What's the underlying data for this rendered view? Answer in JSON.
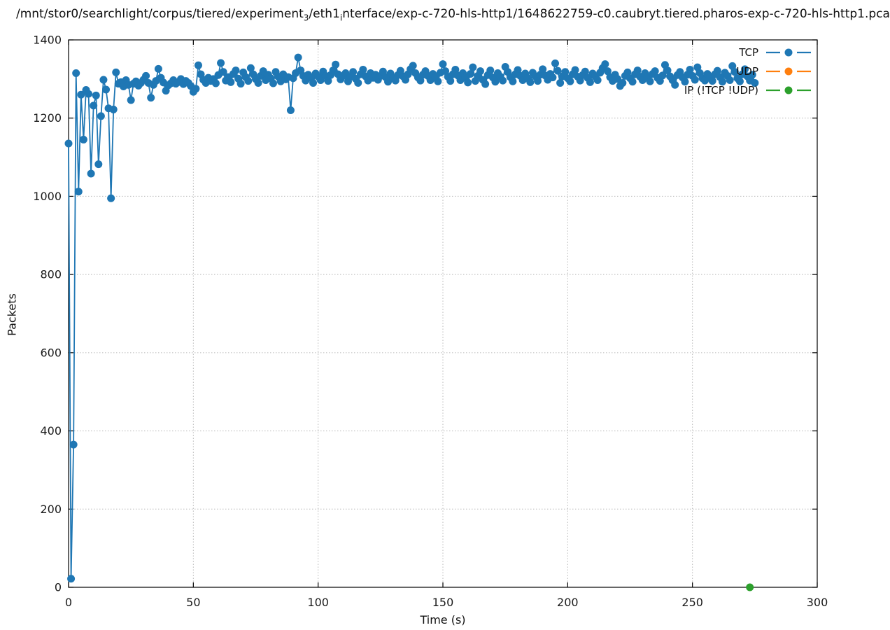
{
  "title": {
    "part1": "/mnt/stor0/searchlight/corpus/tiered/experiment",
    "sub1": "3",
    "part2": "/eth1",
    "sub2": "i",
    "part3": "nterface/exp-c-720-hls-http1/1648622759-c0.caubryt.tiered.pharos-exp-c-720-hls-http1.pca"
  },
  "axes": {
    "xlabel": "Time (s)",
    "ylabel": "Packets",
    "xlim": [
      0,
      300
    ],
    "ylim": [
      0,
      1400
    ],
    "xticks": [
      0,
      50,
      100,
      150,
      200,
      250,
      300
    ],
    "yticks": [
      0,
      200,
      400,
      600,
      800,
      1000,
      1200,
      1400
    ]
  },
  "legend": [
    {
      "label": "TCP",
      "color": "#1f77b4"
    },
    {
      "label": "UDP",
      "color": "#ff7f0e"
    },
    {
      "label": "IP (!TCP !UDP)",
      "color": "#2ca02c"
    }
  ],
  "colors": {
    "grid": "#b8b8b8",
    "axis": "#000000",
    "text": "#1a1a1a"
  },
  "chart_data": {
    "type": "line",
    "title": "/mnt/stor0/searchlight/corpus/tiered/experiment_3/eth1_interface/exp-c-720-hls-http1/1648622759-c0.caubryt.tiered.pharos-exp-c-720-hls-http1.pca",
    "xlabel": "Time (s)",
    "ylabel": "Packets",
    "xlim": [
      0,
      300
    ],
    "ylim": [
      0,
      1400
    ],
    "grid": true,
    "legend_position": "top-right",
    "marker": "circle",
    "series": [
      {
        "name": "TCP",
        "color": "#1f77b4",
        "x_start": 0,
        "x_step": 1,
        "y": [
          1135,
          22,
          365,
          1315,
          1012,
          1260,
          1145,
          1272,
          1262,
          1058,
          1232,
          1258,
          1082,
          1205,
          1298,
          1273,
          1225,
          995,
          1222,
          1317,
          1288,
          1292,
          1281,
          1297,
          1285,
          1246,
          1288,
          1294,
          1283,
          1290,
          1298,
          1308,
          1290,
          1252,
          1285,
          1295,
          1326,
          1303,
          1291,
          1270,
          1284,
          1289,
          1297,
          1288,
          1292,
          1300,
          1287,
          1295,
          1290,
          1282,
          1267,
          1275,
          1335,
          1312,
          1298,
          1290,
          1303,
          1295,
          1300,
          1289,
          1310,
          1341,
          1318,
          1296,
          1305,
          1292,
          1313,
          1322,
          1301,
          1288,
          1317,
          1305,
          1295,
          1328,
          1312,
          1300,
          1290,
          1308,
          1320,
          1297,
          1311,
          1302,
          1289,
          1318,
          1306,
          1294,
          1312,
          1299,
          1305,
          1220,
          1302,
          1315,
          1355,
          1322,
          1308,
          1296,
          1311,
          1303,
          1290,
          1314,
          1306,
          1297,
          1319,
          1308,
          1295,
          1310,
          1322,
          1337,
          1312,
          1299,
          1308,
          1315,
          1294,
          1306,
          1318,
          1301,
          1290,
          1312,
          1324,
          1307,
          1296,
          1315,
          1303,
          1311,
          1298,
          1308,
          1319,
          1305,
          1293,
          1314,
          1302,
          1296,
          1310,
          1321,
          1307,
          1298,
          1312,
          1325,
          1334,
          1315,
          1304,
          1296,
          1311,
          1320,
          1308,
          1297,
          1313,
          1305,
          1294,
          1316,
          1338,
          1320,
          1306,
          1295,
          1312,
          1324,
          1309,
          1297,
          1315,
          1303,
          1291,
          1313,
          1330,
          1295,
          1308,
          1320,
          1298,
          1287,
          1310,
          1322,
          1304,
          1293,
          1315,
          1306,
          1296,
          1331,
          1318,
          1305,
          1294,
          1312,
          1323,
          1308,
          1297,
          1314,
          1302,
          1292,
          1316,
          1307,
          1295,
          1311,
          1325,
          1309,
          1298,
          1313,
          1304,
          1340,
          1321,
          1290,
          1307,
          1318,
          1302,
          1294,
          1312,
          1323,
          1306,
          1296,
          1310,
          1319,
          1303,
          1292,
          1314,
          1307,
          1297,
          1316,
          1328,
          1338,
          1320,
          1305,
          1295,
          1311,
          1300,
          1282,
          1290,
          1308,
          1317,
          1302,
          1293,
          1312,
          1322,
          1306,
          1297,
          1315,
          1304,
          1294,
          1313,
          1320,
          1303,
          1295,
          1309,
          1336,
          1322,
          1307,
          1297,
          1285,
          1310,
          1318,
          1304,
          1293,
          1311,
          1324,
          1308,
          1298,
          1330,
          1315,
          1302,
          1296,
          1313,
          1306,
          1295,
          1312,
          1321,
          1305,
          1293,
          1316,
          1308,
          1297,
          1333,
          1318,
          1302,
          1294,
          1312,
          1325,
          1307,
          1296,
          1311,
          1290
        ]
      },
      {
        "name": "UDP",
        "color": "#ff7f0e",
        "x": [],
        "y": []
      },
      {
        "name": "IP (!TCP !UDP)",
        "color": "#2ca02c",
        "x": [
          273
        ],
        "y": [
          0
        ]
      }
    ]
  }
}
